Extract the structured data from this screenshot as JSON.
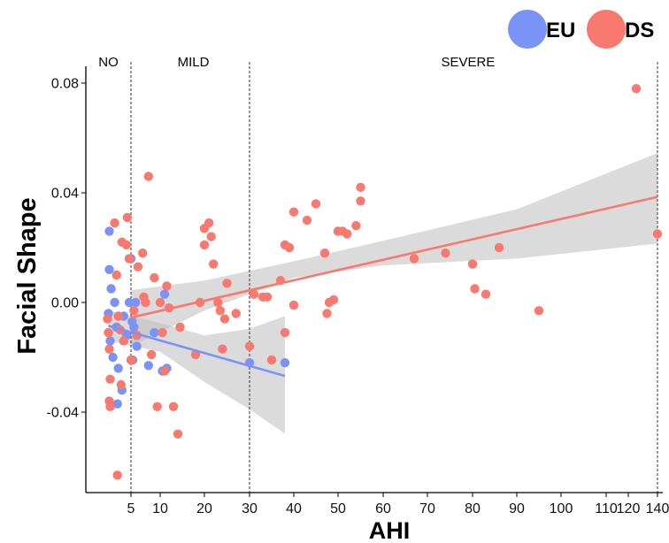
{
  "chart_data": {
    "type": "scatter",
    "title": "",
    "xlabel": "AHI",
    "ylabel": "Facial Shape",
    "xticks": [
      5,
      10,
      20,
      30,
      40,
      50,
      60,
      70,
      80,
      90,
      100,
      110,
      120,
      140
    ],
    "yticks": [
      -0.04,
      0.0,
      0.04,
      0.08
    ],
    "ytick_labels": [
      "-0.04",
      "0.00",
      "0.04",
      "0.08"
    ],
    "ylim": [
      -0.073,
      0.086
    ],
    "regions": [
      {
        "label": "NO",
        "x": 2.5
      },
      {
        "label": "MILD",
        "x": 17.5
      },
      {
        "label": "SEVERE",
        "x": 79
      }
    ],
    "region_boundaries": [
      5,
      30,
      140
    ],
    "legend": {
      "position": "top-right",
      "entries": [
        {
          "label": "EU",
          "color": "#7b93f7"
        },
        {
          "label": "DS",
          "color": "#f7796f"
        }
      ]
    },
    "series": [
      {
        "name": "EU",
        "color": "#7b93f7",
        "points": [
          [
            2.6,
            0.026
          ],
          [
            2.6,
            0.012
          ],
          [
            2.8,
            0.005
          ],
          [
            2.5,
            -0.004
          ],
          [
            2.7,
            -0.014
          ],
          [
            3.0,
            -0.02
          ],
          [
            3.2,
            0.0
          ],
          [
            3.4,
            -0.009
          ],
          [
            3.6,
            -0.024
          ],
          [
            3.5,
            -0.037
          ],
          [
            4.0,
            -0.032
          ],
          [
            4.2,
            -0.005
          ],
          [
            4.5,
            -0.012
          ],
          [
            4.8,
            0.0
          ],
          [
            5.0,
            0.016
          ],
          [
            5.2,
            -0.007
          ],
          [
            5.5,
            -0.009
          ],
          [
            5.8,
            0.0
          ],
          [
            6.0,
            -0.016
          ],
          [
            5.3,
            -0.021
          ],
          [
            8.0,
            -0.023
          ],
          [
            9.0,
            -0.011
          ],
          [
            10.5,
            -0.025
          ],
          [
            11.0,
            0.003
          ],
          [
            11.5,
            -0.024
          ],
          [
            30.0,
            -0.022
          ],
          [
            38.0,
            -0.022
          ]
        ],
        "fit": {
          "x": [
            2.5,
            38
          ],
          "y": [
            -0.0085,
            -0.0268
          ]
        },
        "band": {
          "x": [
            2.5,
            10,
            20,
            30,
            38
          ],
          "lower": [
            -0.014,
            -0.018,
            -0.029,
            -0.039,
            -0.0478
          ],
          "upper": [
            -0.003,
            -0.0075,
            -0.012,
            -0.0096,
            -0.005
          ]
        }
      },
      {
        "name": "DS",
        "color": "#f7796f",
        "points": [
          [
            2.4,
            -0.006
          ],
          [
            2.5,
            -0.011
          ],
          [
            2.6,
            -0.017
          ],
          [
            2.7,
            -0.028
          ],
          [
            2.6,
            -0.036
          ],
          [
            2.7,
            -0.038
          ],
          [
            3.2,
            0.029
          ],
          [
            3.4,
            0.01
          ],
          [
            3.6,
            -0.005
          ],
          [
            3.8,
            -0.01
          ],
          [
            3.9,
            -0.03
          ],
          [
            4.0,
            0.022
          ],
          [
            4.2,
            -0.014
          ],
          [
            4.5,
            0.021
          ],
          [
            4.6,
            0.031
          ],
          [
            4.8,
            0.016
          ],
          [
            5.0,
            -0.021
          ],
          [
            5.5,
            -0.003
          ],
          [
            6.0,
            -0.012
          ],
          [
            6.2,
            0.013
          ],
          [
            3.5,
            -0.063
          ],
          [
            7.0,
            0.018
          ],
          [
            7.2,
            0.002
          ],
          [
            7.5,
            0.0
          ],
          [
            8.0,
            0.046
          ],
          [
            8.5,
            -0.019
          ],
          [
            9.0,
            0.009
          ],
          [
            9.5,
            -0.038
          ],
          [
            10.0,
            0.0
          ],
          [
            10.5,
            -0.011
          ],
          [
            11.0,
            -0.025
          ],
          [
            11.5,
            0.006
          ],
          [
            12.0,
            -0.002
          ],
          [
            13.0,
            -0.038
          ],
          [
            14.0,
            -0.048
          ],
          [
            14.5,
            -0.009
          ],
          [
            18.0,
            -0.019
          ],
          [
            19.0,
            0.0
          ],
          [
            20.0,
            0.027
          ],
          [
            20.0,
            0.021
          ],
          [
            21.0,
            0.029
          ],
          [
            21.5,
            0.024
          ],
          [
            22.0,
            0.014
          ],
          [
            23.0,
            0.0
          ],
          [
            23.5,
            -0.003
          ],
          [
            24.0,
            -0.017
          ],
          [
            24.5,
            -0.006
          ],
          [
            25.0,
            0.007
          ],
          [
            27.0,
            -0.004
          ],
          [
            30.0,
            -0.016
          ],
          [
            31.0,
            0.003
          ],
          [
            33.0,
            0.002
          ],
          [
            34.0,
            0.002
          ],
          [
            35.0,
            -0.021
          ],
          [
            37.0,
            0.008
          ],
          [
            38.0,
            0.021
          ],
          [
            38.0,
            -0.011
          ],
          [
            39.0,
            0.02
          ],
          [
            40.0,
            0.033
          ],
          [
            40.0,
            -0.001
          ],
          [
            43.0,
            0.03
          ],
          [
            45.0,
            0.036
          ],
          [
            47.0,
            0.018
          ],
          [
            47.5,
            -0.004
          ],
          [
            48.0,
            0.0
          ],
          [
            49.0,
            0.001
          ],
          [
            50.0,
            0.026
          ],
          [
            51.0,
            0.026
          ],
          [
            52.0,
            0.025
          ],
          [
            54.0,
            0.028
          ],
          [
            55.0,
            0.042
          ],
          [
            55.0,
            0.037
          ],
          [
            67.0,
            0.016
          ],
          [
            74.0,
            0.018
          ],
          [
            80.0,
            0.014
          ],
          [
            80.5,
            0.005
          ],
          [
            83.0,
            0.003
          ],
          [
            86.0,
            0.02
          ],
          [
            95.0,
            -0.003
          ],
          [
            125.0,
            0.078
          ],
          [
            140.0,
            0.025
          ]
        ],
        "fit": {
          "x": [
            5,
            140
          ],
          "y": [
            -0.0055,
            0.0385
          ]
        },
        "band": {
          "x": [
            5,
            20,
            40,
            60,
            90,
            140
          ],
          "lower": [
            -0.016,
            -0.003,
            0.009,
            0.0135,
            0.016,
            0.0215
          ],
          "upper": [
            0.0045,
            0.008,
            0.015,
            0.0225,
            0.034,
            0.0545
          ]
        }
      }
    ]
  }
}
